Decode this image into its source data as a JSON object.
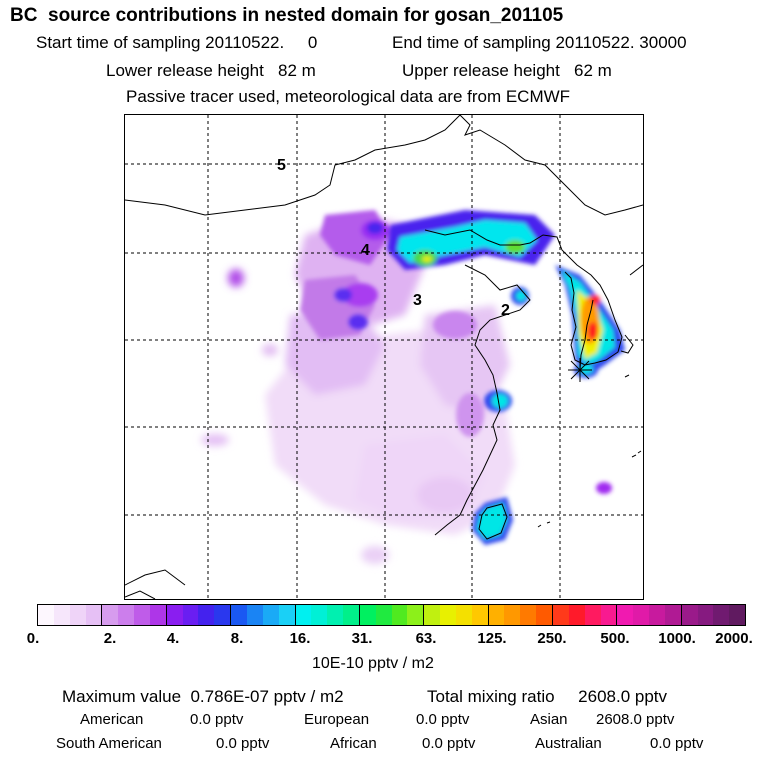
{
  "header": {
    "title": "BC  source contributions in nested domain for gosan_201105",
    "start_time": "Start time of sampling 20110522.     0",
    "end_time": "End time of sampling 20110522. 30000",
    "lower_release": "Lower release height   82 m",
    "upper_release": "Upper release height   62 m",
    "note": "Passive tracer used, meteorological data are from ECMWF"
  },
  "map": {
    "markers": [
      "5",
      "4",
      "3",
      "2"
    ],
    "colors": {
      "lightest": "#f4e8f8",
      "pale": "#e6c8f2",
      "light": "#d79cec",
      "mid": "#c466ea",
      "violet": "#a020f0",
      "blue": "#3e3ef0",
      "cyan": "#00f0f0",
      "green": "#40e040",
      "yellow": "#f0f000",
      "orange": "#ff9000",
      "red": "#ff1a1a"
    }
  },
  "colorbar": {
    "ticks": [
      "0.",
      "2.",
      "4.",
      "8.",
      "16.",
      "31.",
      "63.",
      "125.",
      "250.",
      "500.",
      "1000.",
      "2000."
    ],
    "unit": "10E-10 pptv / m2",
    "colors": [
      "#fdf7fe",
      "#f6e6fb",
      "#efd4f8",
      "#e6c0f5",
      "#d79cee",
      "#cc7eec",
      "#bf5ce9",
      "#ae36e8",
      "#8a1ef0",
      "#6a1ef2",
      "#4422ee",
      "#2a38ee",
      "#1a58f2",
      "#1a84f4",
      "#1aaaf6",
      "#1ad0f6",
      "#00f0f0",
      "#00f0d6",
      "#00f0b0",
      "#00f08a",
      "#00f060",
      "#20ea40",
      "#50ea20",
      "#8cf01a",
      "#c0f010",
      "#e8f000",
      "#f4e000",
      "#ffc800",
      "#ffb000",
      "#ff9800",
      "#ff7a00",
      "#ff5a00",
      "#ff3a1a",
      "#ff1a2a",
      "#ff1a60",
      "#f81a90",
      "#f01ab0",
      "#e01aa8",
      "#c81a9e",
      "#b01a94",
      "#9a1a8a",
      "#861a80",
      "#701a70",
      "#601a60"
    ]
  },
  "stats": {
    "max_label": "Maximum value  0.786E-07 pptv / m2",
    "total_label": "Total mixing ratio     2608.0 pptv",
    "american_label": "American",
    "american_value": "0.0 pptv",
    "european_label": "European",
    "european_value": "0.0 pptv",
    "asian_label": "Asian",
    "asian_value": "2608.0 pptv",
    "south_american_label": "South American",
    "south_american_value": "0.0 pptv",
    "african_label": "African",
    "african_value": "0.0 pptv",
    "australian_label": "Australian",
    "australian_value": "0.0 pptv"
  }
}
